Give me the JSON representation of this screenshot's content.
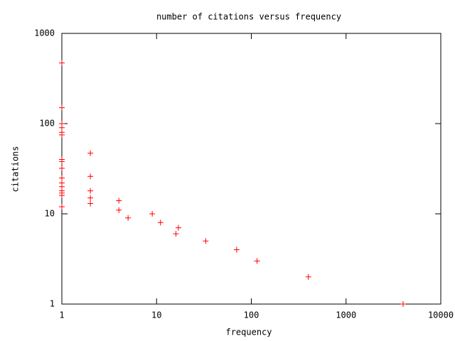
{
  "chart_data": {
    "type": "scatter",
    "title": "number of citations versus frequency",
    "x_label": "frequency",
    "y_label": "citations",
    "x": [
      1,
      1,
      1,
      1,
      1,
      1,
      1,
      1,
      1,
      1,
      1,
      1,
      1,
      1,
      1,
      1,
      2,
      2,
      2,
      2,
      2,
      4,
      4,
      5,
      9,
      11,
      16,
      17,
      33,
      70,
      115,
      400,
      4000
    ],
    "values": [
      470,
      150,
      100,
      90,
      80,
      75,
      40,
      38,
      32,
      25,
      22,
      20,
      18,
      17,
      16,
      12,
      47,
      26,
      18,
      15,
      13,
      14,
      11,
      9,
      10,
      8,
      6,
      7,
      5,
      4,
      3,
      2,
      1
    ],
    "color": "#ff0000",
    "xlog": true,
    "ylog": true,
    "xlim": [
      1,
      10000
    ],
    "ylim": [
      1,
      1000
    ],
    "xticks": [
      1,
      10,
      100,
      1000,
      10000
    ],
    "yticks": [
      1,
      10,
      100,
      1000
    ]
  }
}
